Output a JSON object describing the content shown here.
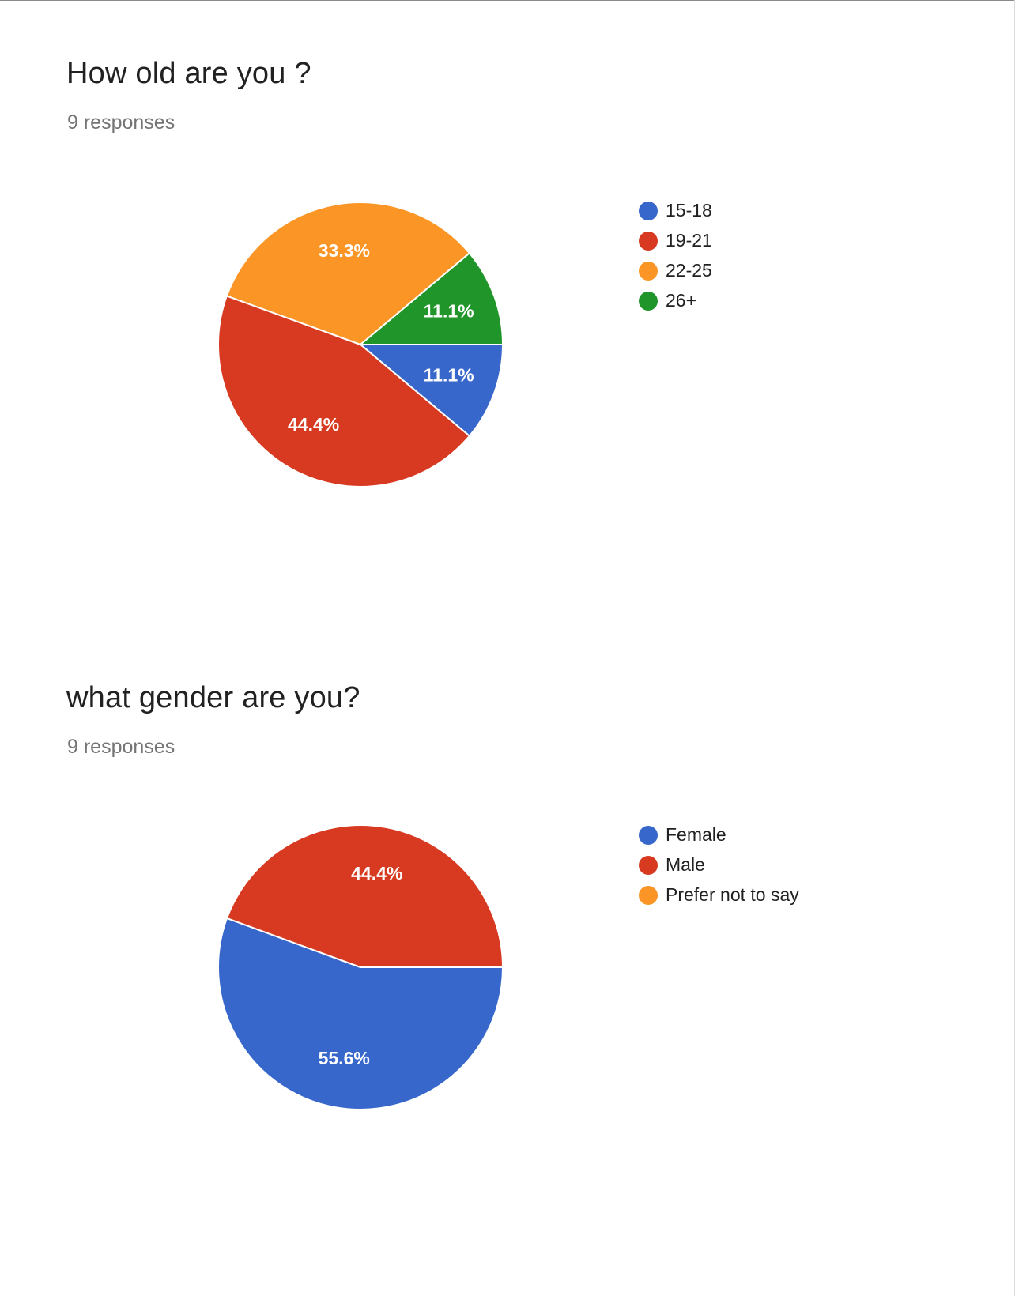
{
  "questions": [
    {
      "title": "How old are you ?",
      "responses_label": "9 responses"
    },
    {
      "title": "what gender are you?",
      "responses_label": "9 responses"
    }
  ],
  "chart_data": [
    {
      "type": "pie",
      "title": "How old are you ?",
      "categories": [
        "15-18",
        "19-21",
        "22-25",
        "26+"
      ],
      "values": [
        11.1,
        44.4,
        33.3,
        11.1
      ],
      "value_labels": [
        "11.1%",
        "44.4%",
        "33.3%",
        "11.1%"
      ],
      "colors": [
        "#3867cc",
        "#d73a20",
        "#fb9626",
        "#20952a"
      ],
      "legend": "right"
    },
    {
      "type": "pie",
      "title": "what gender are you?",
      "categories": [
        "Female",
        "Male",
        "Prefer not to say"
      ],
      "values": [
        55.6,
        44.4,
        0
      ],
      "value_labels": [
        "55.6%",
        "44.4%",
        ""
      ],
      "colors": [
        "#3867cc",
        "#d73a20",
        "#fb9626"
      ],
      "legend": "right"
    }
  ]
}
